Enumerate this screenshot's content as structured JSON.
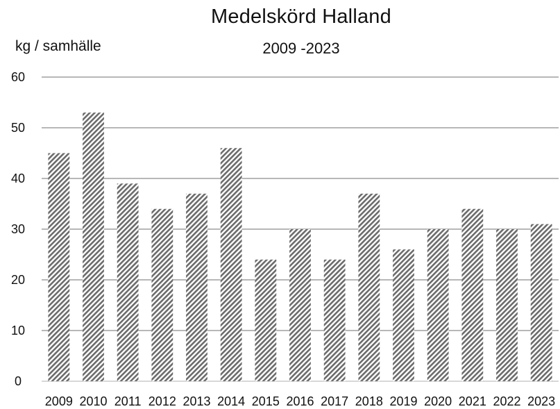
{
  "chart_data": {
    "type": "bar",
    "title": "Medelskörd Halland",
    "subtitle": "2009 -2023",
    "ylabel": "kg / samhälle",
    "xlabel": "",
    "categories": [
      "2009",
      "2010",
      "2011",
      "2012",
      "2013",
      "2014",
      "2015",
      "2016",
      "2017",
      "2018",
      "2019",
      "2020",
      "2021",
      "2022",
      "2023"
    ],
    "values": [
      45,
      53,
      39,
      34,
      37,
      46,
      24,
      30,
      24,
      37,
      26,
      30,
      34,
      30,
      31
    ],
    "ylim": [
      0,
      60
    ],
    "yticks": [
      0,
      10,
      20,
      30,
      40,
      50,
      60
    ],
    "grid": true,
    "bar_fill": "diagonal-hatch",
    "colors": {
      "hatch": "#6b6b6b",
      "grid": "#8c8c8c",
      "axis": "#bfbfbf"
    }
  }
}
